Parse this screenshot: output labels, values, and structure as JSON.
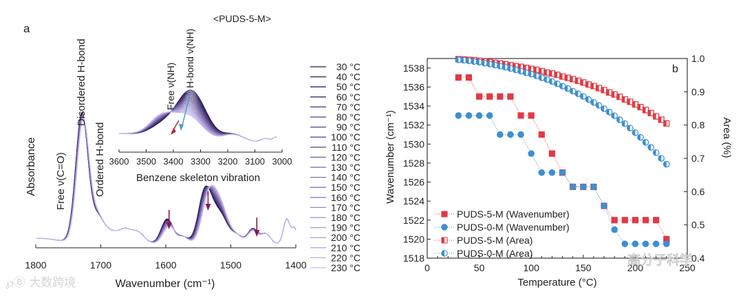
{
  "panel_a": {
    "label": "a",
    "chart_data": {
      "type": "line",
      "title": "",
      "xlabel": "Wavenumber (cm⁻¹)",
      "ylabel": "Absorbance",
      "xlim": [
        1800,
        1400
      ],
      "x_ticks": [
        "1800",
        "1700",
        "1600",
        "1500",
        "1400"
      ],
      "annotations": {
        "free": "Free ν(C=O)",
        "disordered": "Disordered H-bond",
        "ordered": "Ordered H-bond"
      },
      "arrow_positions_cm": [
        1595,
        1535,
        1460
      ],
      "legend": [
        "30 °C",
        "40 °C",
        "50 °C",
        "60 °C",
        "70 °C",
        "80 °C",
        "90 °C",
        "100 °C",
        "110 °C",
        "120 °C",
        "130 °C",
        "140 °C",
        "150 °C",
        "160 °C",
        "170 °C",
        "180 °C",
        "190 °C",
        "200 °C",
        "210 °C",
        "220 °C",
        "230 °C"
      ],
      "inset": {
        "title": "<PUDS-5-M>",
        "xlabel": "Benzene skeleton vibration",
        "x_ticks": [
          "3600",
          "3500",
          "3400",
          "3300",
          "3200",
          "3100",
          "3000"
        ],
        "free_label": "Free ν(NH)",
        "hbond_label": "H-bond ν(NH)",
        "peak_cm": 3335
      }
    }
  },
  "panel_b": {
    "label": "b",
    "chart_data": {
      "type": "scatter",
      "xlabel": "Temperature (°C)",
      "ylabel_left": "Wavenumber (cm⁻¹)",
      "ylabel_right": "Area (%)",
      "xlim": [
        0,
        250
      ],
      "ylim_left": [
        1518,
        1539
      ],
      "ylim_right": [
        0.4,
        1.0
      ],
      "x_ticks": [
        "0",
        "50",
        "100",
        "150",
        "200",
        "250"
      ],
      "y_left_ticks": [
        "1518",
        "1520",
        "1522",
        "1524",
        "1526",
        "1528",
        "1530",
        "1532",
        "1534",
        "1536",
        "1538"
      ],
      "y_right_ticks": [
        "0.4",
        "0.5",
        "0.6",
        "0.7",
        "0.8",
        "0.9",
        "1.0"
      ],
      "series": [
        {
          "name": "PUDS-5-M (Wavenumber)",
          "axis": "left",
          "color": "#e03a44",
          "x": [
            30,
            40,
            50,
            60,
            70,
            80,
            90,
            100,
            110,
            120,
            130,
            140,
            150,
            160,
            170,
            180,
            190,
            200,
            210,
            220,
            230
          ],
          "y": [
            1537,
            1537,
            1535,
            1535,
            1535,
            1535,
            1533,
            1533,
            1531,
            1529,
            1527,
            1525.5,
            1525.5,
            1525.5,
            1523.5,
            1522,
            1522,
            1522,
            1522,
            1522,
            1520
          ]
        },
        {
          "name": "PUDS-0-M (Wavenumber)",
          "axis": "left",
          "color": "#3d8fd1",
          "x": [
            30,
            40,
            50,
            60,
            70,
            80,
            90,
            100,
            110,
            120,
            130,
            140,
            150,
            160,
            170,
            180,
            190,
            200,
            210,
            220,
            230
          ],
          "y": [
            1533,
            1533,
            1533,
            1533,
            1531,
            1531,
            1531,
            1529,
            1527,
            1527,
            1527,
            1525.5,
            1525.5,
            1525.5,
            1523.5,
            1521,
            1519.5,
            1519.5,
            1519.5,
            1519.5,
            1519.5
          ]
        },
        {
          "name": "PUDS-5-M (Area)",
          "axis": "right",
          "color": "#e03a44",
          "x": [
            30,
            35,
            40,
            45,
            50,
            55,
            60,
            65,
            70,
            75,
            80,
            85,
            90,
            95,
            100,
            105,
            110,
            115,
            120,
            125,
            130,
            135,
            140,
            145,
            150,
            155,
            160,
            165,
            170,
            175,
            180,
            185,
            190,
            195,
            200,
            205,
            210,
            215,
            220,
            225,
            230
          ],
          "y": [
            0.998,
            0.997,
            0.996,
            0.995,
            0.993,
            0.991,
            0.989,
            0.987,
            0.985,
            0.983,
            0.98,
            0.977,
            0.975,
            0.972,
            0.969,
            0.966,
            0.962,
            0.958,
            0.955,
            0.951,
            0.946,
            0.942,
            0.938,
            0.933,
            0.928,
            0.922,
            0.917,
            0.911,
            0.905,
            0.898,
            0.892,
            0.885,
            0.877,
            0.87,
            0.862,
            0.854,
            0.845,
            0.836,
            0.826,
            0.816,
            0.805
          ]
        },
        {
          "name": "PUDS-0-M (Area)",
          "axis": "right",
          "color": "#3d8fd1",
          "x": [
            30,
            35,
            40,
            45,
            50,
            55,
            60,
            65,
            70,
            75,
            80,
            85,
            90,
            95,
            100,
            105,
            110,
            115,
            120,
            125,
            130,
            135,
            140,
            145,
            150,
            155,
            160,
            165,
            170,
            175,
            180,
            185,
            190,
            195,
            200,
            205,
            210,
            215,
            220,
            225,
            230
          ],
          "y": [
            0.996,
            0.995,
            0.993,
            0.991,
            0.989,
            0.986,
            0.983,
            0.98,
            0.977,
            0.974,
            0.97,
            0.966,
            0.962,
            0.957,
            0.953,
            0.948,
            0.942,
            0.937,
            0.931,
            0.924,
            0.917,
            0.91,
            0.902,
            0.894,
            0.886,
            0.877,
            0.868,
            0.859,
            0.849,
            0.839,
            0.828,
            0.816,
            0.804,
            0.791,
            0.777,
            0.763,
            0.748,
            0.733,
            0.717,
            0.7,
            0.682
          ]
        }
      ]
    }
  },
  "watermarks": {
    "left": "℘Ⓑ 大数跨境",
    "right": "高分子科学"
  }
}
